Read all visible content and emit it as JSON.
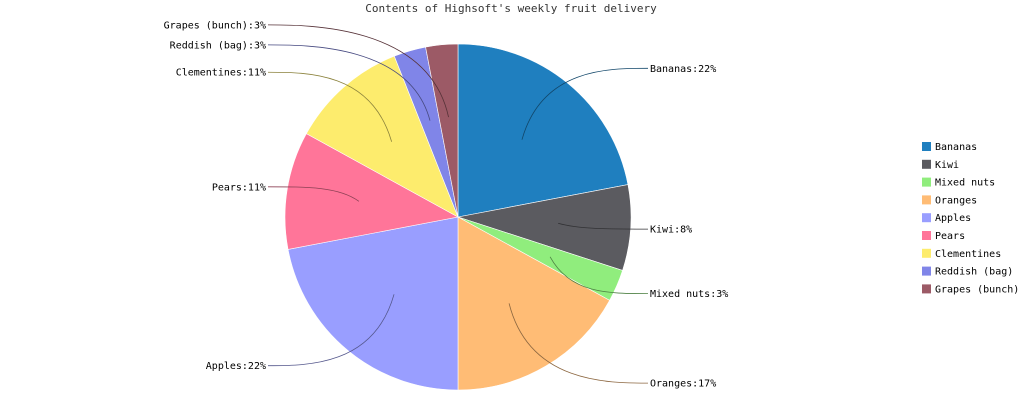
{
  "chart_data": {
    "type": "pie",
    "title": "Contents of Highsoft's weekly fruit delivery",
    "label_format": "{name}:{percent}%",
    "legend_position": "right",
    "slices": [
      {
        "name": "Bananas",
        "value": 22,
        "color": "#1f7fbf"
      },
      {
        "name": "Kiwi",
        "value": 8,
        "color": "#5b5b60"
      },
      {
        "name": "Mixed nuts",
        "value": 3,
        "color": "#90ed7d"
      },
      {
        "name": "Oranges",
        "value": 17,
        "color": "#ffbc75"
      },
      {
        "name": "Apples",
        "value": 22,
        "color": "#999eff"
      },
      {
        "name": "Pears",
        "value": 11,
        "color": "#ff7599"
      },
      {
        "name": "Clementines",
        "value": 11,
        "color": "#fdec6d"
      },
      {
        "name": "Reddish (bag)",
        "value": 3,
        "color": "#8085e8"
      },
      {
        "name": "Grapes (bunch)",
        "value": 3,
        "color": "#9c5a66"
      }
    ]
  }
}
